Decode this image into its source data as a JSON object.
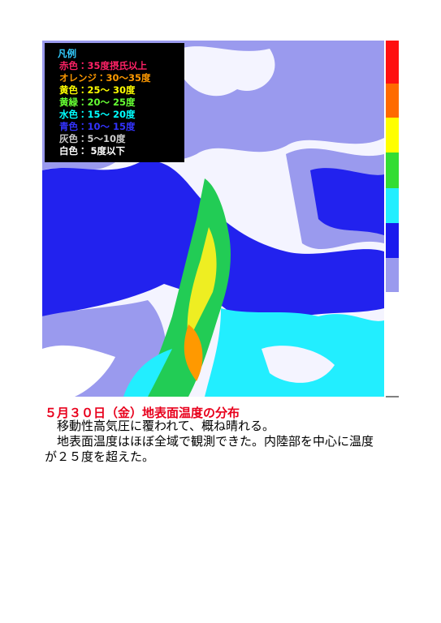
{
  "legend": {
    "title": "凡例",
    "items": [
      "赤色：35度摂氏以上",
      "オレンジ：30～35度",
      "黄色：25～ 30度",
      "黄緑：20～ 25度",
      "水色：15～ 20度",
      "青色：10～ 15度",
      "灰色：5～10度",
      "白色： 5度以下"
    ]
  },
  "heading": "５月３０日（金）地表面温度の分布",
  "paragraphs": [
    "　移動性高気圧に覆われて、概ね晴れる。",
    "　地表面温度はほぼ全域で観測できた。内陸部を中心に温度が２５度を超えた。"
  ]
}
